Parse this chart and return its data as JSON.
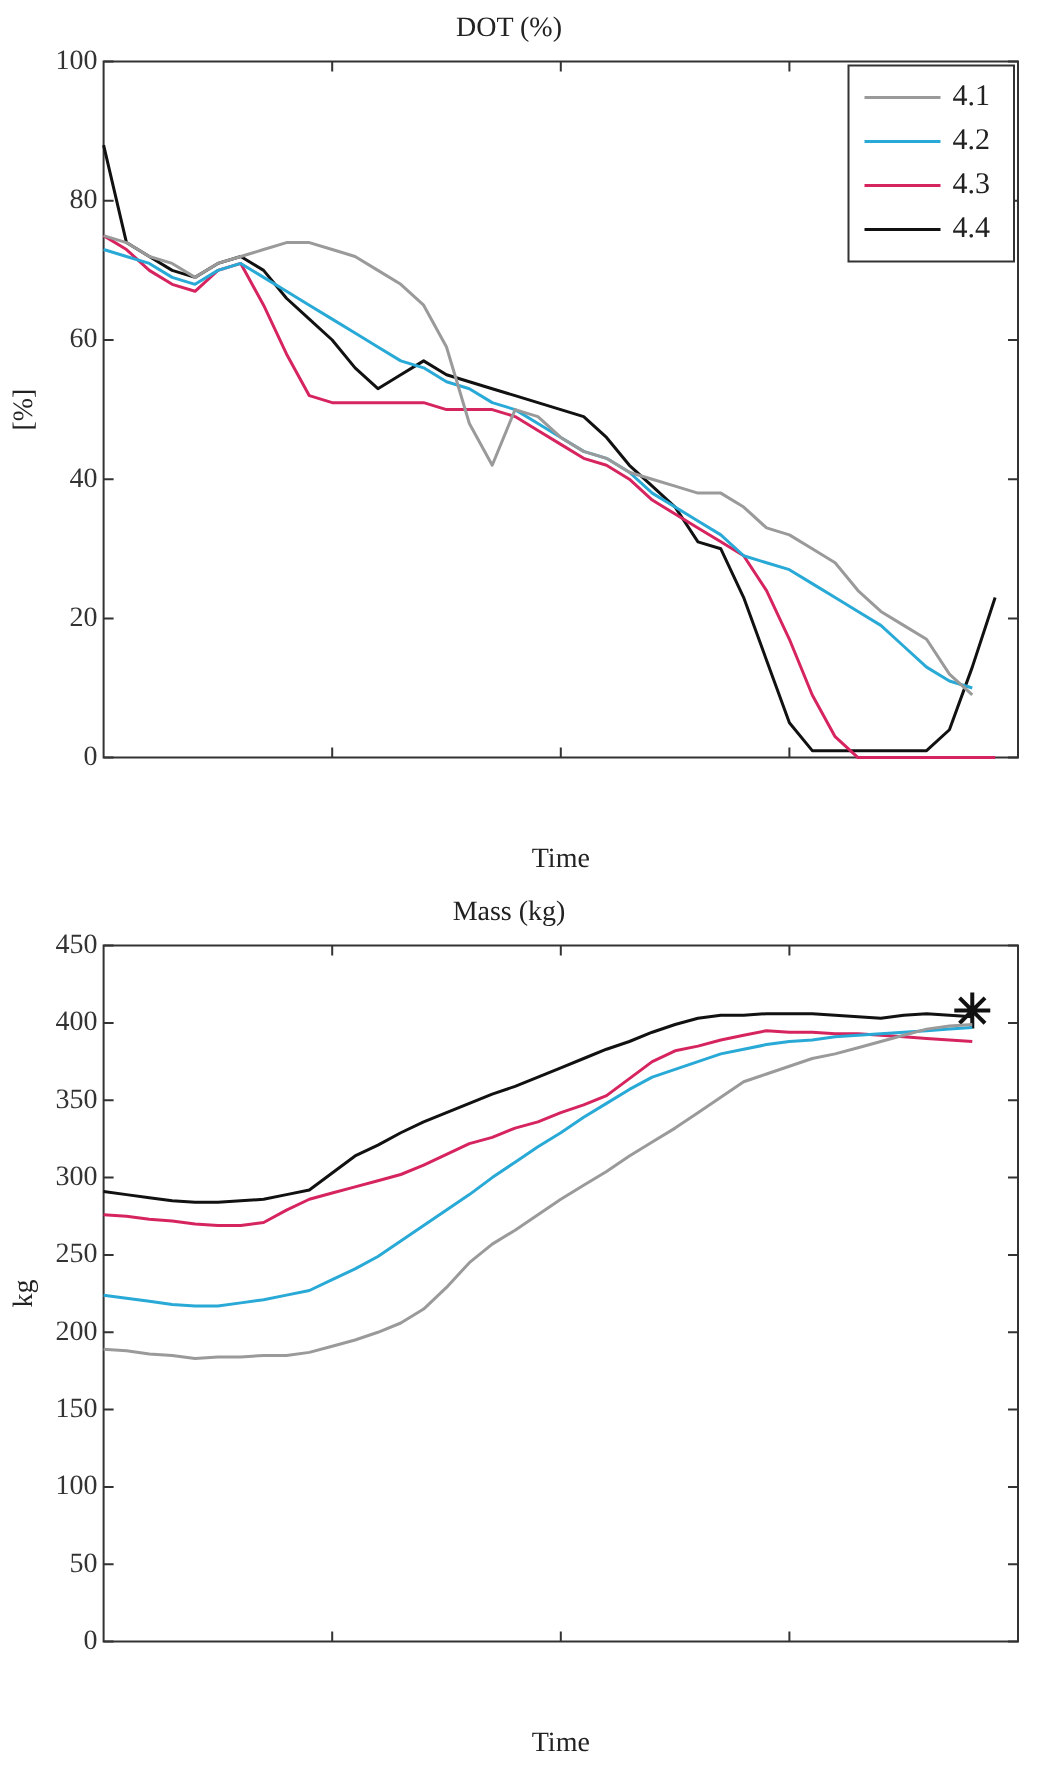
{
  "chart_data": [
    {
      "type": "line",
      "title": "DOT (%)",
      "xlabel": "Time",
      "ylabel": "[%]",
      "categories": [
        null,
        null,
        null,
        null,
        null,
        null,
        null,
        null,
        null,
        null,
        null,
        null,
        null,
        null,
        null,
        null,
        null,
        null,
        null,
        null,
        null,
        null,
        null,
        null,
        null,
        null,
        null,
        null,
        null,
        null,
        null,
        null,
        null,
        null,
        null,
        null,
        null,
        null,
        null,
        null,
        null
      ],
      "ylim": [
        0,
        100
      ],
      "yticks": [
        0,
        20,
        40,
        60,
        80,
        100
      ],
      "legend": "top right",
      "marker": "none",
      "series": [
        {
          "name": "4.1",
          "color": "#9a9a9a",
          "values": [
            75,
            74,
            72,
            71,
            69,
            71,
            72,
            73,
            74,
            74,
            73,
            72,
            70,
            68,
            65,
            59,
            48,
            42,
            50,
            49,
            46,
            44,
            43,
            41,
            40,
            39,
            38,
            38,
            36,
            33,
            32,
            30,
            28,
            24,
            21,
            19,
            17,
            12,
            9,
            null,
            null
          ]
        },
        {
          "name": "4.2",
          "color": "#29a9d6",
          "values": [
            73,
            72,
            71,
            69,
            68,
            70,
            71,
            69,
            67,
            65,
            63,
            61,
            59,
            57,
            56,
            54,
            53,
            51,
            50,
            48,
            46,
            44,
            43,
            41,
            38,
            36,
            34,
            32,
            29,
            28,
            27,
            25,
            23,
            21,
            19,
            16,
            13,
            11,
            10,
            null,
            null
          ]
        },
        {
          "name": "4.3",
          "color": "#d6245e",
          "values": [
            75,
            73,
            70,
            68,
            67,
            70,
            71,
            65,
            58,
            52,
            51,
            51,
            51,
            51,
            51,
            50,
            50,
            50,
            49,
            47,
            45,
            43,
            42,
            40,
            37,
            35,
            33,
            31,
            29,
            24,
            17,
            9,
            3,
            0,
            0,
            0,
            0,
            0,
            0,
            0,
            null
          ]
        },
        {
          "name": "4.4",
          "color": "#111111",
          "values": [
            88,
            74,
            72,
            70,
            69,
            71,
            72,
            70,
            66,
            63,
            60,
            56,
            53,
            55,
            57,
            55,
            54,
            53,
            52,
            51,
            50,
            49,
            46,
            42,
            39,
            36,
            31,
            30,
            23,
            14,
            5,
            1,
            1,
            1,
            1,
            1,
            1,
            4,
            13,
            23,
            null
          ]
        }
      ]
    },
    {
      "type": "line",
      "title": "Mass (kg)",
      "xlabel": "Time",
      "ylabel": "kg",
      "categories": [
        null,
        null,
        null,
        null,
        null,
        null,
        null,
        null,
        null,
        null,
        null,
        null,
        null,
        null,
        null,
        null,
        null,
        null,
        null,
        null,
        null,
        null,
        null,
        null,
        null,
        null,
        null,
        null,
        null,
        null,
        null,
        null,
        null,
        null,
        null,
        null,
        null,
        null,
        null,
        null,
        null
      ],
      "ylim": [
        0,
        450
      ],
      "yticks": [
        0,
        50,
        100,
        150,
        200,
        250,
        300,
        350,
        400,
        450
      ],
      "marker": "none",
      "series": [
        {
          "color": "#9a9a9a",
          "values": [
            189,
            188,
            186,
            185,
            183,
            184,
            184,
            185,
            185,
            187,
            191,
            195,
            200,
            206,
            215,
            229,
            245,
            257,
            266,
            276,
            286,
            295,
            304,
            314,
            323,
            332,
            342,
            352,
            362,
            367,
            372,
            377,
            380,
            384,
            388,
            392,
            396,
            398,
            399,
            null,
            null
          ]
        },
        {
          "color": "#29a9d6",
          "values": [
            224,
            222,
            220,
            218,
            217,
            217,
            219,
            221,
            224,
            227,
            234,
            241,
            249,
            259,
            269,
            279,
            289,
            300,
            310,
            320,
            329,
            339,
            348,
            357,
            365,
            370,
            375,
            380,
            383,
            386,
            388,
            389,
            391,
            392,
            393,
            394,
            395,
            396,
            397,
            null,
            null
          ]
        },
        {
          "color": "#d6245e",
          "values": [
            276,
            275,
            273,
            272,
            270,
            269,
            269,
            271,
            279,
            286,
            290,
            294,
            298,
            302,
            308,
            315,
            322,
            326,
            332,
            336,
            342,
            347,
            353,
            364,
            375,
            382,
            385,
            389,
            392,
            395,
            394,
            394,
            393,
            393,
            392,
            391,
            390,
            389,
            388,
            null,
            null
          ]
        },
        {
          "color": "#111111",
          "values": [
            291,
            289,
            287,
            285,
            284,
            284,
            285,
            286,
            289,
            292,
            303,
            314,
            321,
            329,
            336,
            342,
            348,
            354,
            359,
            365,
            371,
            377,
            383,
            388,
            394,
            399,
            403,
            405,
            405,
            406,
            406,
            406,
            405,
            404,
            403,
            405,
            406,
            405,
            404,
            null,
            null
          ]
        },
        {
          "type": "scatter",
          "marker": "cross",
          "color": "#111111",
          "values": [
            null,
            null,
            null,
            null,
            null,
            null,
            null,
            null,
            null,
            null,
            null,
            null,
            null,
            null,
            null,
            null,
            null,
            null,
            null,
            null,
            null,
            null,
            null,
            null,
            null,
            null,
            null,
            null,
            null,
            null,
            null,
            null,
            null,
            null,
            null,
            null,
            null,
            null,
            408,
            null,
            null
          ]
        }
      ]
    }
  ]
}
